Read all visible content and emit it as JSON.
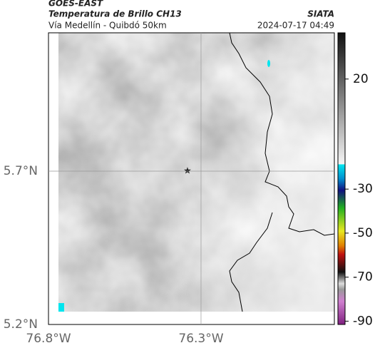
{
  "header": {
    "satellite": "GOES-EAST",
    "title": "Temperatura de Brillo CH13",
    "source": "SIATA",
    "subtitle": "Vía Medellín - Quibdó 50km",
    "timestamp": "2024-07-17 04:49"
  },
  "map": {
    "xlim": [
      -76.8,
      -75.863
    ],
    "ylim": [
      5.2,
      6.151
    ],
    "xticks": [
      {
        "value": -76.8,
        "label": "76.8°W"
      },
      {
        "value": -76.3,
        "label": "76.3°W"
      }
    ],
    "yticks": [
      {
        "value": 5.2,
        "label": "5.2°N"
      },
      {
        "value": 5.7,
        "label": "5.7°N"
      }
    ]
  },
  "colorbar": {
    "lim": [
      41,
      -91.5
    ],
    "ticks": [
      20,
      -30,
      -50,
      -70,
      -90
    ]
  }
}
